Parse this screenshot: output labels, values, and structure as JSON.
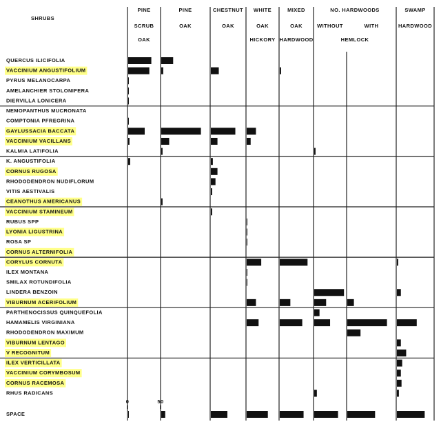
{
  "chart_data": {
    "type": "bar",
    "row_header": "SHRUBS",
    "columns": [
      {
        "lines": [
          "PINE",
          "SCRUB",
          "OAK"
        ]
      },
      {
        "lines": [
          "PINE",
          "OAK"
        ]
      },
      {
        "lines": [
          "CHESTNUT",
          "OAK"
        ]
      },
      {
        "lines": [
          "WHITE",
          "OAK",
          "HICKORY"
        ]
      },
      {
        "lines": [
          "MIXED",
          "OAK",
          "HARDWOOD"
        ]
      },
      {
        "lines": [
          "WITHOUT"
        ]
      },
      {
        "lines": [
          "WITH"
        ]
      },
      {
        "lines": [
          "SWAMP",
          "HARDWOOD"
        ]
      }
    ],
    "group_header": {
      "title": "NO. HARDWOODS",
      "subtitle": "HEMLOCK"
    },
    "rows": [
      {
        "name": "QUERCUS ILICIFOLIA",
        "highlighted": false,
        "values": [
          35,
          18,
          0,
          0,
          0,
          0,
          0,
          0
        ]
      },
      {
        "name": "VACCINIUM ANGUSTIFOLIUM",
        "highlighted": true,
        "values": [
          32,
          3,
          12,
          0,
          2,
          0,
          0,
          0
        ]
      },
      {
        "name": "PYRUS MELANOCARPA",
        "highlighted": false,
        "values": [
          1,
          0,
          0,
          0,
          0,
          0,
          0,
          0
        ]
      },
      {
        "name": "AMELANCHIER STOLONIFERA",
        "highlighted": false,
        "values": [
          1,
          0,
          0,
          0,
          0,
          0,
          0,
          0
        ]
      },
      {
        "name": "DIERVILLA LONICERA",
        "highlighted": false,
        "values": [
          1,
          0,
          0,
          0,
          0,
          0,
          0,
          0
        ]
      },
      {
        "name": "NEMOPANTHUS MUCRONATA",
        "highlighted": false,
        "values": [
          0,
          0,
          0,
          0,
          0,
          0,
          0,
          0
        ]
      },
      {
        "name": "COMPTONIA PFREGRINA",
        "highlighted": false,
        "values": [
          1,
          0,
          0,
          0,
          0,
          0,
          0,
          0
        ]
      },
      {
        "name": "GAYLUSSACIA BACCATA",
        "highlighted": true,
        "values": [
          25,
          60,
          37,
          14,
          0,
          0,
          0,
          0
        ]
      },
      {
        "name": "VACCINIUM VACILLANS",
        "highlighted": true,
        "values": [
          2,
          12,
          10,
          6,
          0,
          0,
          0,
          0
        ]
      },
      {
        "name": "KALMIA LATIFOLIA",
        "highlighted": false,
        "values": [
          0,
          2,
          0,
          0,
          0,
          2,
          0,
          0
        ]
      },
      {
        "name": "K. ANGUSTIFOLIA",
        "highlighted": false,
        "values": [
          3,
          0,
          3,
          0,
          0,
          0,
          0,
          0
        ]
      },
      {
        "name": "CORNUS RUGOSA",
        "highlighted": true,
        "values": [
          0,
          0,
          10,
          0,
          0,
          0,
          0,
          0
        ]
      },
      {
        "name": "RHODODENDRON NUDIFLORUM",
        "highlighted": false,
        "values": [
          0,
          0,
          7,
          0,
          0,
          0,
          0,
          0
        ]
      },
      {
        "name": "VITIS AESTIVALIS",
        "highlighted": false,
        "values": [
          0,
          0,
          2,
          0,
          0,
          0,
          0,
          0
        ]
      },
      {
        "name": "CEANOTHUS AMERICANUS",
        "highlighted": true,
        "values": [
          0,
          2,
          0,
          0,
          0,
          0,
          0,
          0
        ]
      },
      {
        "name": "VACCINIUM STAMINEUM",
        "highlighted": true,
        "values": [
          0,
          0,
          2,
          0,
          0,
          0,
          0,
          0
        ]
      },
      {
        "name": "RUBUS SPP",
        "highlighted": false,
        "values": [
          0,
          0,
          0,
          1,
          0,
          0,
          0,
          0
        ]
      },
      {
        "name": "LYONIA LIGUSTRINA",
        "highlighted": true,
        "values": [
          0,
          0,
          0,
          1,
          0,
          0,
          0,
          0
        ]
      },
      {
        "name": "ROSA SP",
        "highlighted": false,
        "values": [
          0,
          0,
          0,
          1,
          0,
          0,
          0,
          0
        ]
      },
      {
        "name": "CORNUS ALTERNIFOLIA",
        "highlighted": true,
        "values": [
          0,
          0,
          0,
          0,
          0,
          0,
          0,
          0
        ]
      },
      {
        "name": "CORYLUS CORNUTA",
        "highlighted": true,
        "values": [
          0,
          0,
          0,
          22,
          42,
          0,
          0,
          2
        ]
      },
      {
        "name": "ILEX MONTANA",
        "highlighted": false,
        "values": [
          0,
          0,
          0,
          1,
          0,
          0,
          0,
          0
        ]
      },
      {
        "name": "SMILAX ROTUNDIFOLIA",
        "highlighted": false,
        "values": [
          0,
          0,
          0,
          1,
          0,
          0,
          0,
          0
        ]
      },
      {
        "name": "LINDERA BENZOIN",
        "highlighted": false,
        "values": [
          0,
          0,
          0,
          0,
          0,
          45,
          0,
          6
        ]
      },
      {
        "name": "VIBURNUM ACERIFOLIUM",
        "highlighted": true,
        "values": [
          0,
          0,
          0,
          14,
          16,
          18,
          10,
          0
        ]
      },
      {
        "name": "PARTHENOCISSUS QUINQUEFOLIA",
        "highlighted": false,
        "values": [
          0,
          0,
          0,
          0,
          0,
          8,
          0,
          0
        ]
      },
      {
        "name": "HAMAMELIS VIRGINIANA",
        "highlighted": false,
        "values": [
          0,
          0,
          0,
          18,
          34,
          24,
          60,
          30
        ]
      },
      {
        "name": "RHODODENDRON MAXIMUM",
        "highlighted": false,
        "values": [
          0,
          0,
          0,
          0,
          0,
          0,
          20,
          0
        ]
      },
      {
        "name": "VIBURNUM LENTAGO",
        "highlighted": true,
        "values": [
          0,
          0,
          0,
          0,
          0,
          0,
          0,
          6
        ]
      },
      {
        "name": "V  RECOGNITUM",
        "highlighted": true,
        "values": [
          0,
          0,
          0,
          0,
          0,
          0,
          0,
          14
        ]
      },
      {
        "name": "ILEX VERTICILLATA",
        "highlighted": true,
        "values": [
          0,
          0,
          0,
          0,
          0,
          0,
          0,
          8
        ]
      },
      {
        "name": "VACCINIUM CORYMBOSUM",
        "highlighted": true,
        "values": [
          0,
          0,
          0,
          0,
          0,
          0,
          0,
          6
        ]
      },
      {
        "name": "CORNUS RACEMOSA",
        "highlighted": true,
        "values": [
          0,
          0,
          0,
          0,
          0,
          0,
          0,
          7
        ]
      },
      {
        "name": "RHUS RADICANS",
        "highlighted": false,
        "values": [
          0,
          0,
          0,
          0,
          0,
          4,
          0,
          3
        ]
      }
    ],
    "space_row": {
      "name": "SPACE",
      "values": [
        1,
        6,
        25,
        32,
        36,
        36,
        42,
        42
      ]
    },
    "scale_ticks": [
      0,
      50
    ],
    "highlight_color": "#ffff88",
    "bar_color": "#111111"
  }
}
